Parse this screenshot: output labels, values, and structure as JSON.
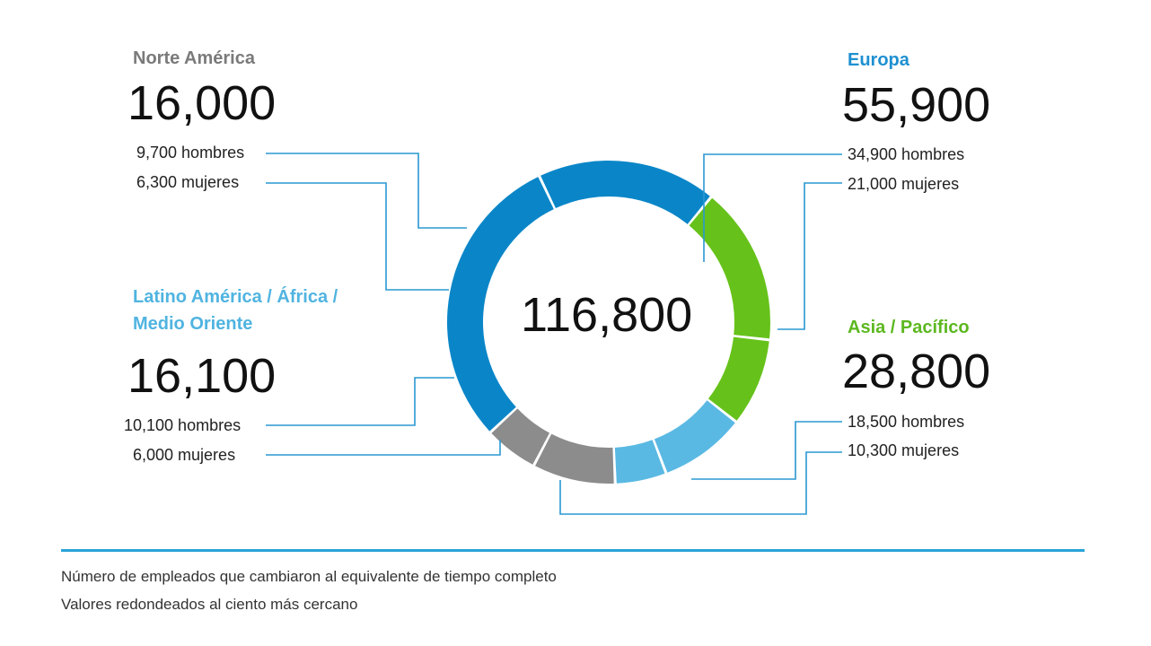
{
  "chart_data": {
    "type": "pie",
    "title": "",
    "total": 116800,
    "total_label": "116,800",
    "colors": {
      "na": "#8c8c8c",
      "eu": "#0a86c8",
      "ap": "#66c21a",
      "la": "#5ab9e3",
      "leader": "#2a98d2",
      "na_title": "#7a7a7a",
      "eu_title": "#1e90d0",
      "ap_title": "#5cb820",
      "la_title": "#50b4e0"
    },
    "regions": [
      {
        "key": "na",
        "name": "Norte América",
        "total": 16000,
        "total_label": "16,000",
        "segments": [
          {
            "label": "9,700 hombres",
            "value": 9700
          },
          {
            "label": "6,300 mujeres",
            "value": 6300
          }
        ]
      },
      {
        "key": "eu",
        "name": "Europa",
        "total": 55900,
        "total_label": "55,900",
        "segments": [
          {
            "label": "34,900 hombres",
            "value": 34900
          },
          {
            "label": "21,000 mujeres",
            "value": 21000
          }
        ]
      },
      {
        "key": "ap",
        "name": "Asia / Pacífico",
        "total": 28800,
        "total_label": "28,800",
        "segments": [
          {
            "label": "18,500 hombres",
            "value": 18500
          },
          {
            "label": "10,300 mujeres",
            "value": 10300
          }
        ]
      },
      {
        "key": "la",
        "name_line1": "Latino América / África /",
        "name_line2": "Medio Oriente",
        "total": 16100,
        "total_label": "16,100",
        "segments": [
          {
            "label": "10,100 hombres",
            "value": 10100
          },
          {
            "label": "6,000 mujeres",
            "value": 6000
          }
        ]
      }
    ]
  },
  "notes": {
    "line1": "Número de empleados que cambiaron al equivalente de tiempo completo",
    "line2": "Valores redondeados al ciento más cercano"
  }
}
